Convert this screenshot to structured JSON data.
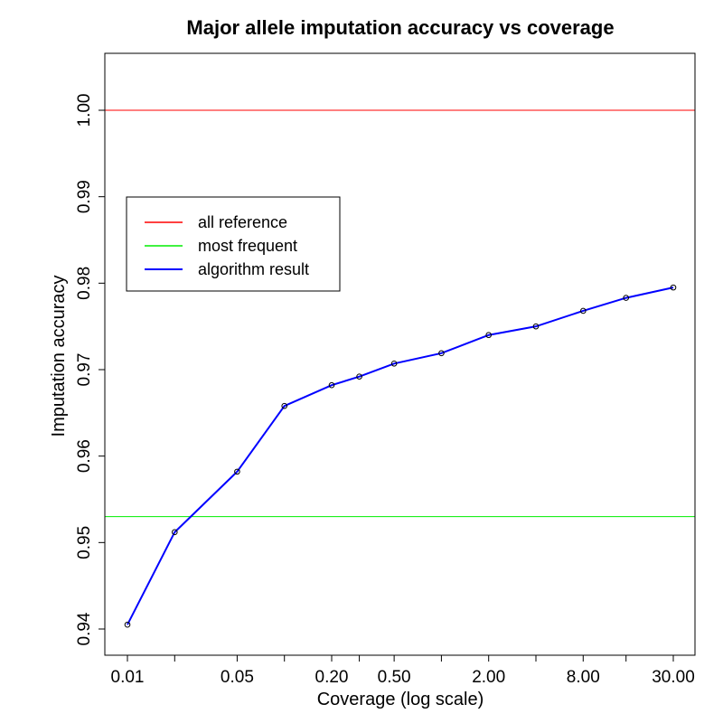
{
  "chart_data": {
    "type": "line",
    "title": "Major allele imputation accuracy vs coverage",
    "xlabel": "Coverage (log scale)",
    "ylabel": "Imputation accuracy",
    "x_scale": "log",
    "xlim": [
      0.01,
      30
    ],
    "ylim": [
      0.94,
      1.0
    ],
    "x_tick_values": [
      0.01,
      0.02,
      0.05,
      0.1,
      0.2,
      0.3,
      0.5,
      1,
      2,
      4,
      8,
      15,
      30
    ],
    "x_tick_labels": [
      "0.01",
      "",
      "0.05",
      "",
      "0.20",
      "",
      "0.50",
      "",
      "2.00",
      "",
      "8.00",
      "",
      "30.00"
    ],
    "y_ticks": [
      0.94,
      0.95,
      0.96,
      0.97,
      0.98,
      0.99,
      1.0
    ],
    "y_tick_labels": [
      "0.94",
      "0.95",
      "0.96",
      "0.97",
      "0.98",
      "0.99",
      "1.00"
    ],
    "grid": false,
    "legend_position": "top-left",
    "series": [
      {
        "name": "all reference",
        "color": "#ff0000",
        "kind": "hline",
        "y": 1.0
      },
      {
        "name": "most frequent",
        "color": "#00ee00",
        "kind": "hline",
        "y": 0.953
      },
      {
        "name": "algorithm result",
        "color": "#0000ff",
        "kind": "line",
        "markers": "open-circle",
        "x": [
          0.01,
          0.02,
          0.05,
          0.1,
          0.2,
          0.3,
          0.5,
          1,
          2,
          4,
          8,
          15,
          30
        ],
        "y": [
          0.9405,
          0.9512,
          0.9582,
          0.9658,
          0.9682,
          0.9692,
          0.9707,
          0.9719,
          0.974,
          0.975,
          0.9768,
          0.9783,
          0.9795
        ]
      }
    ]
  }
}
